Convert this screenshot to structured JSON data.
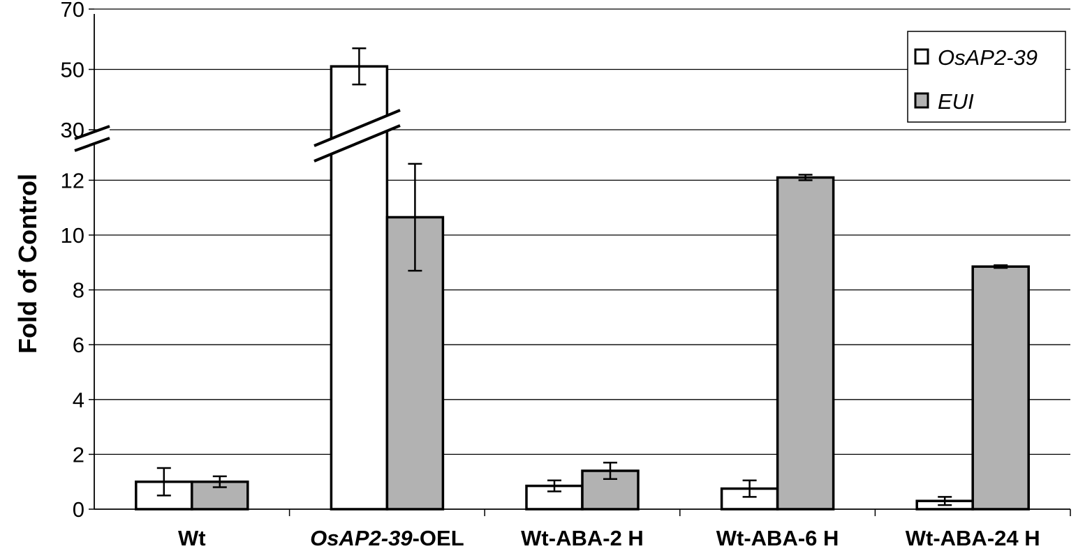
{
  "chart_data": {
    "type": "bar",
    "ylabel": "Fold of Control",
    "axis_break": {
      "lower": [
        0,
        13
      ],
      "upper": [
        30,
        70
      ]
    },
    "yticks": [
      "0",
      "2",
      "4",
      "6",
      "8",
      "10",
      "12",
      "30",
      "50",
      "70"
    ],
    "categories": [
      "Wt",
      "OsAP2-39-OEL",
      "Wt-ABA-2 H",
      "Wt-ABA-6 H",
      "Wt-ABA-24 H"
    ],
    "category_parts": [
      {
        "italic": "",
        "plain": "Wt"
      },
      {
        "italic": "OsAP2-39",
        "plain": "-OEL"
      },
      {
        "italic": "",
        "plain": "Wt-ABA-2 H"
      },
      {
        "italic": "",
        "plain": "Wt-ABA-6 H"
      },
      {
        "italic": "",
        "plain": "Wt-ABA-24 H"
      }
    ],
    "series": [
      {
        "name": "OsAP2-39",
        "color": "#ffffff",
        "values": [
          1.0,
          51,
          0.85,
          0.75,
          0.3
        ],
        "errors": [
          0.5,
          6,
          0.2,
          0.3,
          0.15
        ]
      },
      {
        "name": "EUI",
        "color": "#b2b2b2",
        "values": [
          1.0,
          10.65,
          1.4,
          12.1,
          8.85
        ],
        "errors": [
          0.2,
          1.95,
          0.3,
          0.1,
          0.05
        ]
      }
    ],
    "grid": true,
    "legend_position": "top-right"
  }
}
